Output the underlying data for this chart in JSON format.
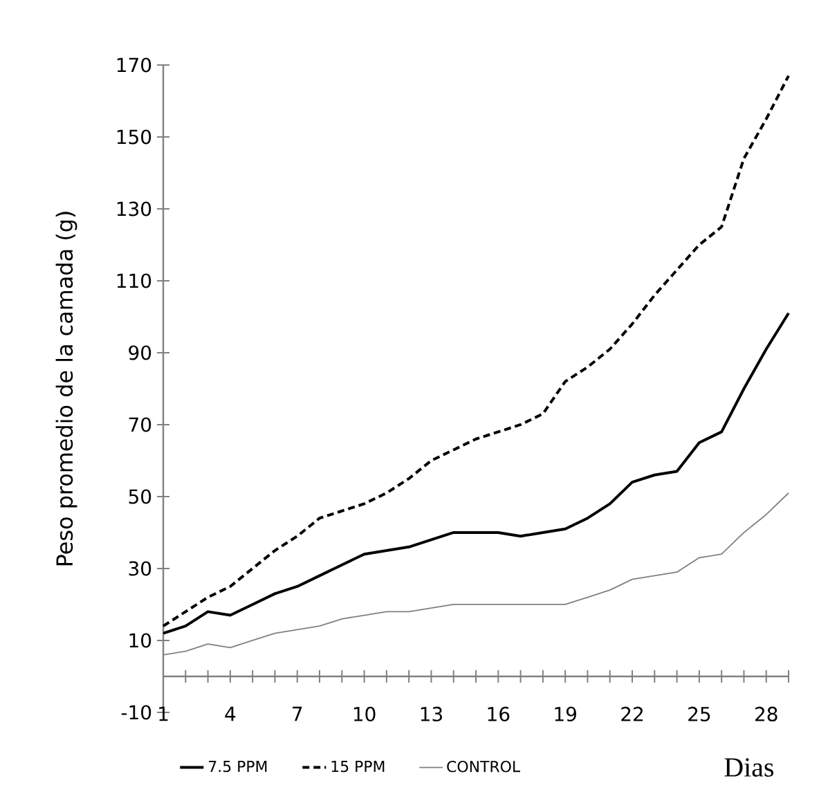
{
  "chart_data": {
    "type": "line",
    "xlabel": "Dias",
    "ylabel": "Peso promedio de la camada (g)",
    "x": [
      1,
      2,
      3,
      4,
      5,
      6,
      7,
      8,
      9,
      10,
      11,
      12,
      13,
      14,
      15,
      16,
      17,
      18,
      19,
      20,
      21,
      22,
      23,
      24,
      25,
      26,
      27,
      28,
      29
    ],
    "series": [
      {
        "name": "7.5 PPM",
        "color": "#000000",
        "line_style": "solid",
        "values": [
          12,
          14,
          18,
          17,
          20,
          23,
          25,
          28,
          31,
          34,
          35,
          36,
          38,
          40,
          40,
          40,
          39,
          40,
          41,
          44,
          48,
          54,
          56,
          57,
          65,
          68,
          80,
          91,
          101
        ]
      },
      {
        "name": "15 PPM",
        "color": "#000000",
        "line_style": "dashed",
        "values": [
          14,
          18,
          22,
          25,
          30,
          35,
          39,
          44,
          46,
          48,
          51,
          55,
          60,
          63,
          66,
          68,
          70,
          73,
          82,
          86,
          91,
          98,
          106,
          113,
          120,
          125,
          144,
          155,
          167
        ]
      },
      {
        "name": "CONTROL",
        "color": "#808080",
        "line_style": "solid",
        "values": [
          6,
          7,
          9,
          8,
          10,
          12,
          13,
          14,
          16,
          17,
          18,
          18,
          19,
          20,
          20,
          20,
          20,
          20,
          20,
          22,
          24,
          27,
          28,
          29,
          33,
          34,
          40,
          45,
          51
        ]
      }
    ],
    "xlim": [
      1,
      29
    ],
    "xticks": [
      1,
      {
        "value": 2,
        "label": null
      },
      {
        "value": 3,
        "label": null
      },
      4,
      {
        "value": 5,
        "label": null
      },
      {
        "value": 6,
        "label": null
      },
      7,
      {
        "value": 8,
        "label": null
      },
      {
        "value": 9,
        "label": null
      },
      10,
      {
        "value": 11,
        "label": null
      },
      {
        "value": 12,
        "label": null
      },
      13,
      {
        "value": 14,
        "label": null
      },
      {
        "value": 15,
        "label": null
      },
      16,
      {
        "value": 17,
        "label": null
      },
      {
        "value": 18,
        "label": null
      },
      19,
      {
        "value": 20,
        "label": null
      },
      {
        "value": 21,
        "label": null
      },
      22,
      {
        "value": 23,
        "label": null
      },
      {
        "value": 24,
        "label": null
      },
      25,
      {
        "value": 26,
        "label": null
      },
      {
        "value": 27,
        "label": null
      },
      28,
      {
        "value": 29,
        "label": null
      }
    ],
    "ylim": [
      -10,
      170
    ],
    "yticks": [
      -10,
      10,
      30,
      50,
      70,
      90,
      110,
      130,
      150,
      170
    ],
    "grid": false,
    "legend": "bottom",
    "marker": "none"
  }
}
